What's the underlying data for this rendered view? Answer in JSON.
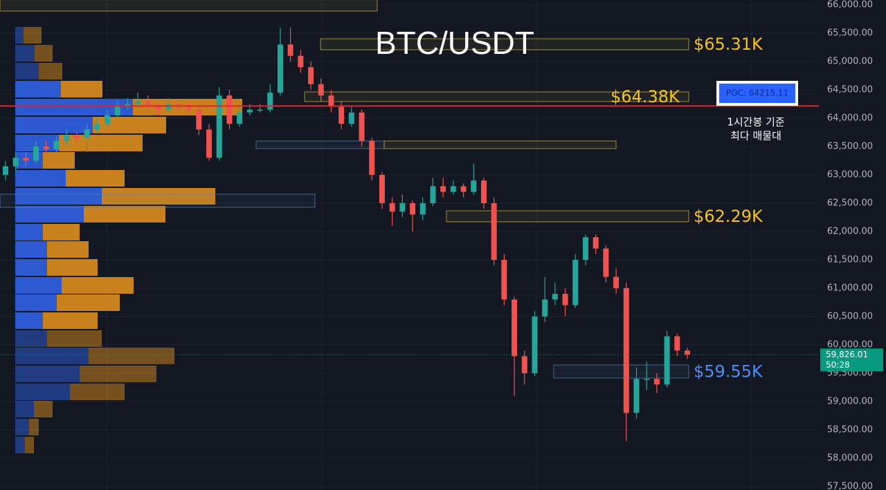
{
  "chart_data": {
    "type": "candlestick",
    "title": "BTC/USDT",
    "ylim": [
      57439,
      66085
    ],
    "yticks": [
      {
        "value": 57500,
        "label": "57,500.00"
      },
      {
        "value": 58000,
        "label": "58,000.00"
      },
      {
        "value": 58500,
        "label": "58,500.00"
      },
      {
        "value": 59000,
        "label": "59,000.00"
      },
      {
        "value": 59500,
        "label": "59,500.00"
      },
      {
        "value": 60000,
        "label": "60,000.00"
      },
      {
        "value": 60500,
        "label": "60,500.00"
      },
      {
        "value": 61000,
        "label": "61,000.00"
      },
      {
        "value": 61500,
        "label": "61,500.00"
      },
      {
        "value": 62000,
        "label": "62,000.00"
      },
      {
        "value": 62500,
        "label": "62,500.00"
      },
      {
        "value": 63000,
        "label": "63,000.00"
      },
      {
        "value": 63500,
        "label": "63,500.00"
      },
      {
        "value": 64000,
        "label": "64,000.00"
      },
      {
        "value": 64500,
        "label": "64,500.00"
      },
      {
        "value": 65000,
        "label": "65,000.00"
      },
      {
        "value": 65500,
        "label": "65,500.00"
      },
      {
        "value": 66000,
        "label": "66,000.00"
      }
    ],
    "grid": true,
    "up_color": "#26a69a",
    "down_color": "#ef5350",
    "open": [
      63000,
      63150,
      63300,
      63250,
      63500,
      63450,
      63600,
      63700,
      63650,
      63800,
      63900,
      64050,
      64200,
      64250,
      64300,
      64200,
      64150,
      64250,
      64200,
      64150,
      63800,
      63300,
      64400,
      63900,
      64100,
      64150,
      64150,
      64450,
      65300,
      65100,
      64900,
      64600,
      64400,
      64200,
      63900,
      64100,
      63600,
      63000,
      62500,
      62350,
      62500,
      62300,
      62500,
      62800,
      62700,
      62800,
      62700,
      62900,
      62500,
      61500,
      60800,
      59800,
      59500,
      60500,
      60800,
      60900,
      60700,
      61500,
      61900,
      61700,
      61200,
      61000,
      58800,
      59400,
      59400,
      59300,
      60150,
      59900
    ],
    "high": [
      63250,
      63400,
      63400,
      63600,
      63600,
      63700,
      63800,
      63750,
      63900,
      64000,
      64150,
      64300,
      64350,
      64450,
      64400,
      64300,
      64350,
      64300,
      64300,
      64200,
      63900,
      64550,
      64500,
      64200,
      64250,
      64250,
      64600,
      65600,
      65600,
      65200,
      65000,
      64700,
      64500,
      64300,
      64200,
      64150,
      63650,
      63050,
      62600,
      62650,
      62550,
      62600,
      62950,
      62950,
      62900,
      62850,
      63200,
      62950,
      62600,
      61600,
      60850,
      59900,
      60600,
      61200,
      61100,
      61000,
      61600,
      61950,
      61950,
      61750,
      61350,
      61100,
      59600,
      59700,
      59500,
      60250,
      60200,
      59950
    ],
    "low": [
      62900,
      63050,
      63150,
      63200,
      63350,
      63400,
      63500,
      63550,
      63400,
      63750,
      63850,
      64000,
      64150,
      64200,
      64100,
      64050,
      64100,
      64100,
      64100,
      63700,
      63250,
      63250,
      63800,
      63850,
      64050,
      64100,
      64100,
      64400,
      65000,
      64800,
      64500,
      64300,
      64100,
      63800,
      63850,
      63500,
      62900,
      62400,
      62100,
      62250,
      62000,
      62200,
      62450,
      62600,
      62650,
      62600,
      62650,
      62400,
      61400,
      60700,
      59100,
      59300,
      59450,
      60400,
      60700,
      60500,
      60650,
      61400,
      61600,
      61100,
      60900,
      58300,
      58700,
      59200,
      59150,
      59250,
      59800,
      59750
    ],
    "close": [
      63150,
      63300,
      63250,
      63500,
      63450,
      63600,
      63700,
      63650,
      63800,
      63900,
      64050,
      64200,
      64250,
      64300,
      64200,
      64150,
      64250,
      64200,
      64150,
      63800,
      63300,
      64400,
      63900,
      64100,
      64150,
      64150,
      64450,
      65300,
      65100,
      64900,
      64600,
      64400,
      64200,
      63900,
      64100,
      63600,
      63000,
      62500,
      62350,
      62500,
      62300,
      62500,
      62800,
      62700,
      62800,
      62700,
      62900,
      62500,
      61500,
      60800,
      59800,
      59500,
      60500,
      60800,
      60900,
      60700,
      61500,
      61900,
      61700,
      61200,
      61000,
      58800,
      59400,
      59400,
      59300,
      60150,
      59900,
      59826.01
    ],
    "volume_profile": {
      "levels": [
        65463,
        65146,
        64829,
        64512,
        64195,
        63878,
        63561,
        63256,
        62939,
        62622,
        62305,
        61988,
        61683,
        61366,
        61049,
        60744,
        60427,
        60110,
        59805,
        59488,
        59171,
        58866,
        58549,
        58232
      ],
      "up": [
        12,
        28,
        34,
        66,
        170,
        112,
        63,
        40,
        73,
        125,
        99,
        40,
        46,
        46,
        67,
        60,
        40,
        46,
        106,
        93,
        79,
        27,
        20,
        14
      ],
      "down": [
        26,
        26,
        34,
        60,
        158,
        106,
        121,
        46,
        85,
        164,
        118,
        53,
        60,
        73,
        104,
        91,
        79,
        79,
        124,
        111,
        79,
        27,
        14,
        13
      ],
      "up_color": "#2f5fe0",
      "down_color": "#d98b1d"
    },
    "zones": [
      {
        "low": 65890,
        "high": 66090,
        "color": "#c9b53a"
      },
      {
        "low": 65207,
        "high": 65402,
        "color": "#c9b53a",
        "label": "$65.31K",
        "label_color": "#f6c21c"
      },
      {
        "low": 64293,
        "high": 64463,
        "color": "#c9b53a",
        "label": "$64.38K",
        "label_color": "#f6c21c"
      },
      {
        "low": 63463,
        "high": 63597,
        "color": "#5a7fb8"
      },
      {
        "low": 63463,
        "high": 63597,
        "color": "#c9b53a"
      },
      {
        "low": 62427,
        "high": 62659,
        "color": "#5a7fb8"
      },
      {
        "low": 62171,
        "high": 62366,
        "color": "#c9b53a",
        "label": "$62.29K",
        "label_color": "#f6c21c"
      },
      {
        "low": 59415,
        "high": 59646,
        "color": "#5a7fb8",
        "label": "$59.55K",
        "label_color": "#4f8df5"
      }
    ],
    "poc": {
      "value": 64215.11,
      "label": "POC: 64215.11",
      "color": "#e0262b"
    },
    "annotations": [
      "1시간봉 기준",
      "최다 매물대"
    ],
    "last_price": {
      "value": 59826.01,
      "label": "59,826.01",
      "timer": "50:28",
      "color": "#089981"
    }
  }
}
